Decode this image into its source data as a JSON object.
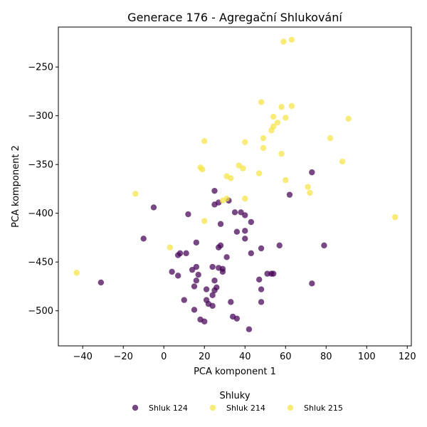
{
  "chart_data": {
    "type": "scatter",
    "title": "Generace 176 - Agregační Shlukování",
    "xlabel": "PCA komponent 1",
    "ylabel": "PCA komponent 2",
    "xlim": [
      -52,
      122
    ],
    "ylim": [
      -536,
      -209
    ],
    "xticks": [
      -40,
      -20,
      0,
      20,
      40,
      60,
      80,
      100,
      120
    ],
    "yticks": [
      -250,
      -300,
      -350,
      -400,
      -450,
      -500
    ],
    "legend_title": "Shluky",
    "legend_position": "bottom",
    "grid": false,
    "series": [
      {
        "name": "Shluk 124",
        "color": "#440154",
        "points": [
          [
            73,
            -358
          ],
          [
            62,
            -381
          ],
          [
            25,
            -377
          ],
          [
            32,
            -387
          ],
          [
            25,
            -391
          ],
          [
            27,
            -389
          ],
          [
            -5,
            -394
          ],
          [
            12,
            -401
          ],
          [
            35,
            -399
          ],
          [
            38,
            -399
          ],
          [
            40,
            -402
          ],
          [
            28,
            -411
          ],
          [
            43,
            -409
          ],
          [
            36,
            -419
          ],
          [
            40,
            -418
          ],
          [
            -10,
            -426
          ],
          [
            40,
            -426
          ],
          [
            16,
            -430
          ],
          [
            28,
            -433
          ],
          [
            27,
            -435
          ],
          [
            57,
            -433
          ],
          [
            79,
            -433
          ],
          [
            48,
            -436
          ],
          [
            8,
            -441
          ],
          [
            11,
            -441
          ],
          [
            7,
            -443
          ],
          [
            43,
            -441
          ],
          [
            31,
            -445
          ],
          [
            16,
            -455
          ],
          [
            24,
            -455
          ],
          [
            27,
            -456
          ],
          [
            14,
            -458
          ],
          [
            29,
            -457
          ],
          [
            29,
            -460
          ],
          [
            4,
            -460
          ],
          [
            17,
            -463
          ],
          [
            51,
            -462
          ],
          [
            53,
            -462
          ],
          [
            54,
            -462
          ],
          [
            7,
            -464
          ],
          [
            16,
            -469
          ],
          [
            25,
            -469
          ],
          [
            47,
            -468
          ],
          [
            73,
            -472
          ],
          [
            15,
            -475
          ],
          [
            26,
            -476
          ],
          [
            25,
            -479
          ],
          [
            48,
            -478
          ],
          [
            21,
            -478
          ],
          [
            24,
            -484
          ],
          [
            10,
            -489
          ],
          [
            21,
            -489
          ],
          [
            33,
            -491
          ],
          [
            48,
            -491
          ],
          [
            22,
            -493
          ],
          [
            24,
            -495
          ],
          [
            15,
            -499
          ],
          [
            34,
            -506
          ],
          [
            36,
            -508
          ],
          [
            18,
            -509
          ],
          [
            20,
            -511
          ],
          [
            42,
            -519
          ],
          [
            -31,
            -471
          ]
        ]
      },
      {
        "name": "Shluk 214",
        "color": "#f0e442",
        "points": []
      },
      {
        "name": "Shluk 215",
        "color": "#f5e342",
        "points": [
          [
            63,
            -222
          ],
          [
            59,
            -224
          ],
          [
            48,
            -286
          ],
          [
            58,
            -291
          ],
          [
            63,
            -290
          ],
          [
            54,
            -301
          ],
          [
            60,
            -302
          ],
          [
            56,
            -307
          ],
          [
            91,
            -303
          ],
          [
            54,
            -311
          ],
          [
            53,
            -315
          ],
          [
            49,
            -323
          ],
          [
            82,
            -323
          ],
          [
            20,
            -326
          ],
          [
            40,
            -327
          ],
          [
            49,
            -333
          ],
          [
            58,
            -339
          ],
          [
            88,
            -347
          ],
          [
            37,
            -351
          ],
          [
            18,
            -353
          ],
          [
            19,
            -355
          ],
          [
            39,
            -354
          ],
          [
            47,
            -359
          ],
          [
            31,
            -362
          ],
          [
            33,
            -364
          ],
          [
            60,
            -366
          ],
          [
            71,
            -373
          ],
          [
            72,
            -379
          ],
          [
            -14,
            -380
          ],
          [
            31,
            -385
          ],
          [
            40,
            -385
          ],
          [
            29,
            -387
          ],
          [
            20,
            -408
          ],
          [
            3,
            -435
          ],
          [
            -43,
            -461
          ],
          [
            114,
            -404
          ]
        ]
      }
    ]
  }
}
